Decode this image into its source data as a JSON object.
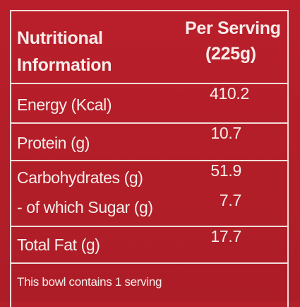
{
  "header": {
    "left_line1": "Nutritional",
    "left_line2": "Information",
    "right_line1": "Per Serving",
    "right_line2": "(225g)"
  },
  "rows": [
    {
      "label": "Energy (Kcal)",
      "value": "410.2"
    },
    {
      "label": "Protein (g)",
      "value": "10.7"
    },
    {
      "label": "Carbohydrates (g)",
      "value": "51.9"
    },
    {
      "label": "- of which Sugar (g)",
      "value": "7.7"
    },
    {
      "label": "Total Fat (g)",
      "value": "17.7"
    }
  ],
  "footer": "This bowl contains 1 serving",
  "colors": {
    "background": "#b3202a",
    "text": "#f7ecea",
    "rule": "#f1dcd9"
  }
}
